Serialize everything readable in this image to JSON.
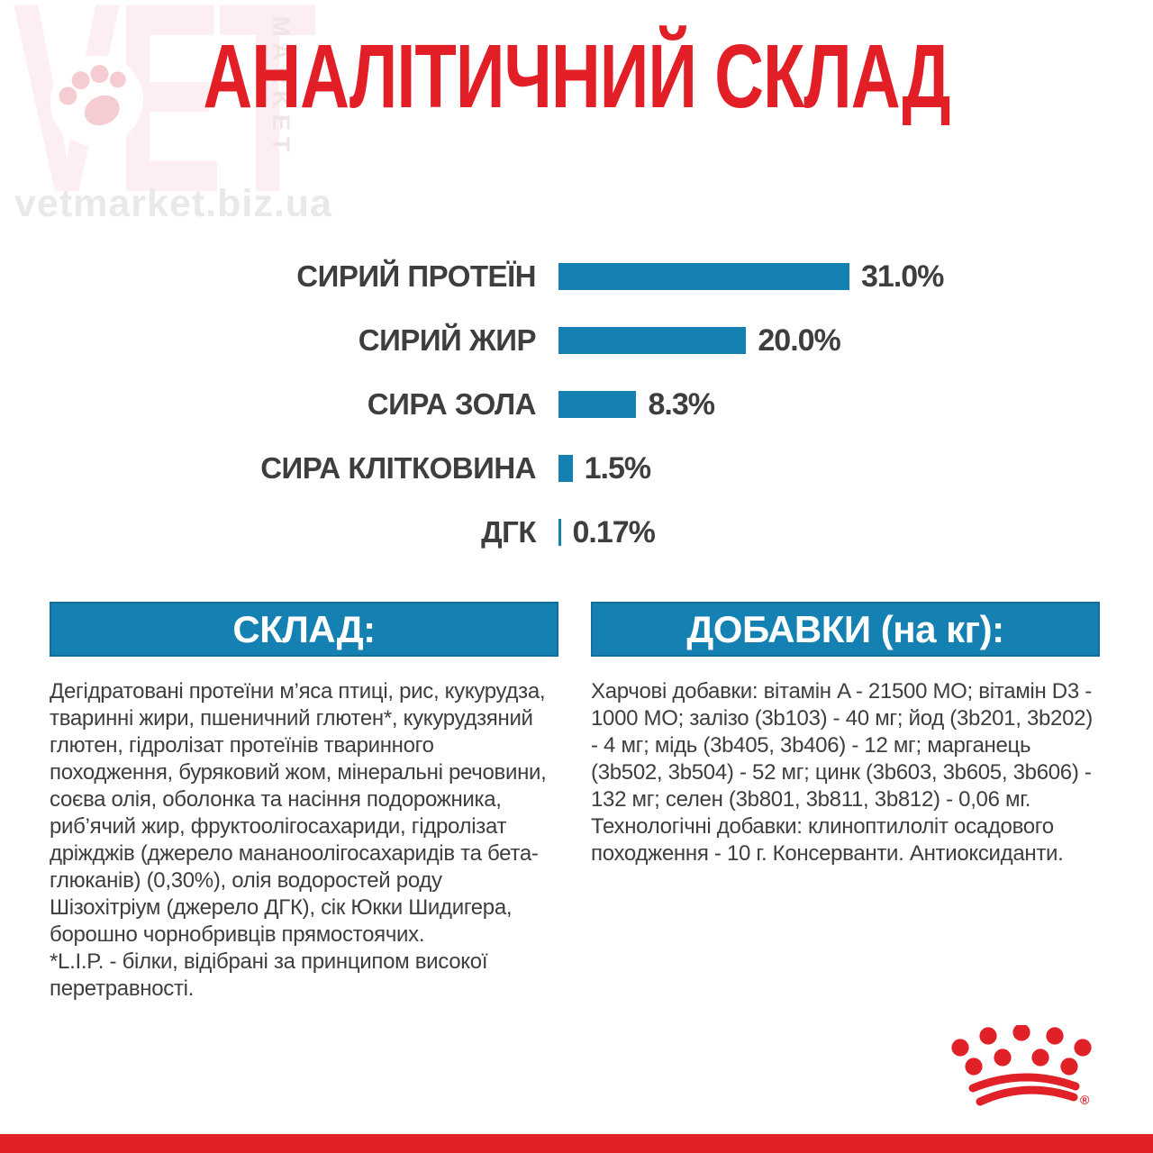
{
  "watermark": {
    "brand": "VET",
    "brand_vertical": "MARKET",
    "site": "vetmarket.biz.ua"
  },
  "title": "АНАЛІТИЧНИЙ СКЛАД",
  "chart_data": {
    "type": "bar",
    "orientation": "horizontal",
    "categories": [
      "СИРИЙ ПРОТЕЇН",
      "СИРИЙ ЖИР",
      "СИРА ЗОЛА",
      "СИРА КЛІТКОВИНА",
      "ДГК"
    ],
    "values": [
      31.0,
      20.0,
      8.3,
      1.5,
      0.17
    ],
    "value_labels": [
      "31.0%",
      "20.0%",
      "8.3%",
      "1.5%",
      "0.17%"
    ],
    "xlim": [
      0,
      31
    ],
    "bar_color": "#1581b2",
    "grid": false,
    "legend": false
  },
  "composition": {
    "header": "СКЛАД:",
    "body": "Дегідратовані протеїни м’яса птиці, рис, кукурудза, тваринні жири, пшеничний глютен*, кукурудзяний глютен, гідролізат протеїнів тваринного походження, буряковий жом, мінеральні речовини, соєва олія, оболонка та насіння подорожника, риб’ячий жир, фруктоолігосахариди, гідролізат дріжджів (джерело мананоолігосахаридів та бета-глюканів) (0,30%), олія водоростей роду Шізохітріум (джерело ДГК), сік Юкки Шидигера, борошно чорнобривців прямостоячих.\n*L.I.P. - білки, відібрані за принципом високої перетравності."
  },
  "additives": {
    "header": "ДОБАВКИ (на кг):",
    "body": "Харчові добавки: вітамін A - 21500 МО; вітамін D3 - 1000 МО; залізо (3b103) - 40 мг; йод (3b201, 3b202) - 4 мг; мідь (3b405, 3b406) - 12 мг; марганець (3b502, 3b504) - 52 мг; цинк (3b603, 3b605, 3b606) - 132 мг; селен (3b801, 3b811, 3b812) - 0,06 мг. Технологічні добавки: клиноптилоліт осадового походження - 10 г. Консерванти. Антиоксиданти."
  },
  "logo": {
    "registered_mark": "®"
  },
  "colors": {
    "accent_red": "#e21f26",
    "accent_blue": "#1581b2",
    "text_dark": "#3e3e40",
    "watermark_pink": "#fceef1",
    "watermark_gray": "#e9e9e9"
  }
}
